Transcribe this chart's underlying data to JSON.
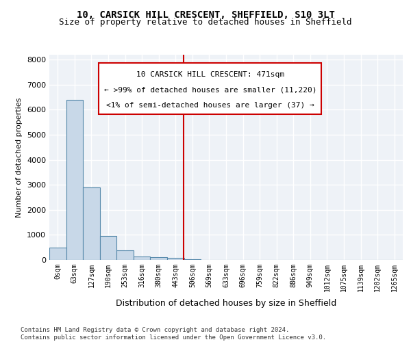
{
  "title1": "10, CARSICK HILL CRESCENT, SHEFFIELD, S10 3LT",
  "title2": "Size of property relative to detached houses in Sheffield",
  "xlabel": "Distribution of detached houses by size in Sheffield",
  "ylabel": "Number of detached properties",
  "bar_labels": [
    "0sqm",
    "63sqm",
    "127sqm",
    "190sqm",
    "253sqm",
    "316sqm",
    "380sqm",
    "443sqm",
    "506sqm",
    "569sqm",
    "633sqm",
    "696sqm",
    "759sqm",
    "822sqm",
    "886sqm",
    "949sqm",
    "1012sqm",
    "1075sqm",
    "1139sqm",
    "1202sqm",
    "1265sqm"
  ],
  "bar_values": [
    500,
    6400,
    2900,
    950,
    380,
    150,
    115,
    70,
    20,
    8,
    4,
    2,
    1,
    1,
    0,
    0,
    0,
    0,
    0,
    0,
    0
  ],
  "bar_color": "#c8d8e8",
  "bar_edge_color": "#5588aa",
  "property_size": 471,
  "property_label": "10 CARSICK HILL CRESCENT: 471sqm",
  "annotation_line1": "← >99% of detached houses are smaller (11,220)",
  "annotation_line2": "<1% of semi-detached houses are larger (37) →",
  "vline_color": "#cc0000",
  "ylim": [
    0,
    8200
  ],
  "yticks": [
    0,
    1000,
    2000,
    3000,
    4000,
    5000,
    6000,
    7000,
    8000
  ],
  "background_color": "#eef2f7",
  "grid_color": "#ffffff",
  "footer1": "Contains HM Land Registry data © Crown copyright and database right 2024.",
  "footer2": "Contains public sector information licensed under the Open Government Licence v3.0."
}
